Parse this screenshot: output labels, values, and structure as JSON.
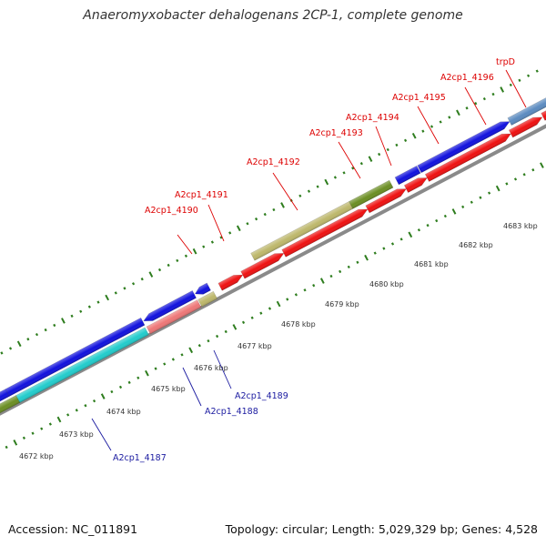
{
  "title": "Anaeromyxobacter dehalogenans 2CP-1, complete genome",
  "footer": {
    "accession": "Accession: NC_011891",
    "summary": "Topology: circular; Length: 5,029,329 bp; Genes: 4,528"
  },
  "colors": {
    "background": "#ffffff",
    "backbone": "#8a8a8a",
    "tick": "#2e7d1e",
    "label_forward": "#dd0000",
    "label_reverse": "#1a1aa0",
    "gene_red": "#ee1111",
    "gene_blue": "#1111dd",
    "gene_steel": "#5b8bc0",
    "gene_olive": "#6b8e23",
    "gene_khaki": "#bdb76b",
    "gene_cyan": "#22cccc",
    "gene_pink": "#ee7777"
  },
  "scale_labels": [
    "4672 kbp",
    "4673 kbp",
    "4674 kbp",
    "4675 kbp",
    "4676 kbp",
    "4677 kbp",
    "4678 kbp",
    "4679 kbp",
    "4680 kbp",
    "4681 kbp",
    "4682 kbp",
    "4683 kbp"
  ],
  "forward_gene_labels": [
    "A2cp1_4190",
    "A2cp1_4191",
    "A2cp1_4192",
    "A2cp1_4193",
    "A2cp1_4194",
    "A2cp1_4195",
    "A2cp1_4196",
    "trpD"
  ],
  "reverse_gene_labels": [
    "A2cp1_4187",
    "A2cp1_4188",
    "A2cp1_4189"
  ]
}
